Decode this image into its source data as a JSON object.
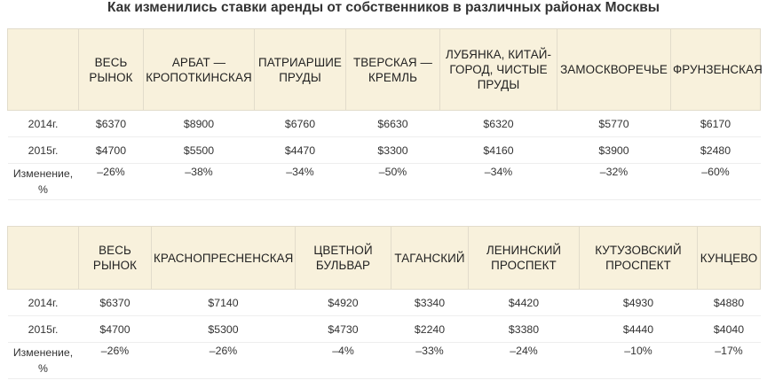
{
  "title": "Как изменились ставки аренды от собственников в различных районах Москвы",
  "tables": [
    {
      "columns": [
        "",
        "Весь рынок",
        "Арбат — Кропоткинская",
        "Патриаршие пруды",
        "Тверская — Кремль",
        "Лубянка, Китай-город, Чистые пруды",
        "Замоскворечье",
        "Фрунзенская"
      ],
      "rows": [
        {
          "label": "2014г.",
          "values": [
            "$6370",
            "$8900",
            "$6760",
            "$6630",
            "$6320",
            "$5770",
            "$6170"
          ]
        },
        {
          "label": "2015г.",
          "values": [
            "$4700",
            "$5500",
            "$4470",
            "$3300",
            "$4160",
            "$3900",
            "$2480"
          ]
        },
        {
          "label": "Изменение, %",
          "values": [
            "–26%",
            "–38%",
            "–34%",
            "–50%",
            "–34%",
            "–32%",
            "–60%"
          ]
        }
      ]
    },
    {
      "columns": [
        "",
        "Весь рынок",
        "Краснопресненская",
        "Цветной бульвар",
        "Таганский",
        "Ленинский проспект",
        "Кутузовский проспект",
        "Кунцево"
      ],
      "rows": [
        {
          "label": "2014г.",
          "values": [
            "$6370",
            "$7140",
            "$4920",
            "$3340",
            "$4420",
            "$4930",
            "$4880"
          ]
        },
        {
          "label": "2015г.",
          "values": [
            "$4700",
            "$5300",
            "$4730",
            "$2240",
            "$3380",
            "$4440",
            "$4040"
          ]
        },
        {
          "label": "Изменение, %",
          "values": [
            "–26%",
            "–26%",
            "–4%",
            "–33%",
            "–24%",
            "–10%",
            "–17%"
          ]
        }
      ]
    }
  ]
}
